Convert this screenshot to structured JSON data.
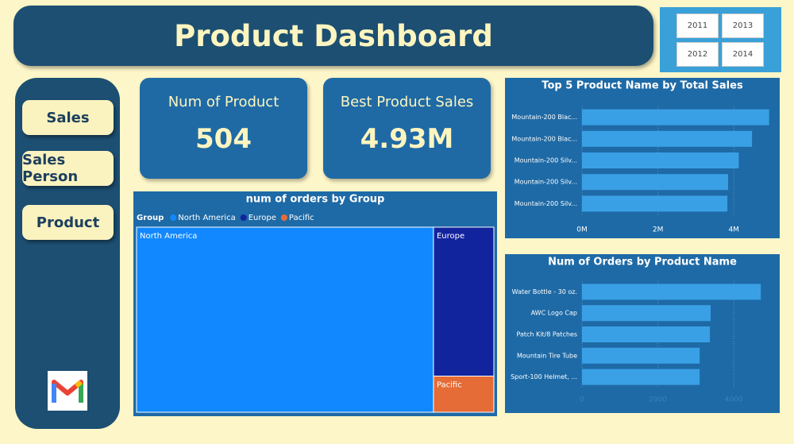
{
  "header": {
    "title": "Product Dashboard"
  },
  "year_slicer": {
    "options": [
      "2011",
      "2013",
      "2012",
      "2014"
    ]
  },
  "nav": {
    "buttons": [
      "Sales",
      "Sales Person",
      "Product"
    ]
  },
  "cards": [
    {
      "label": "Num of Product",
      "value": "504"
    },
    {
      "label": "Best Product Sales",
      "value": "4.93M"
    }
  ],
  "chart_data": [
    {
      "type": "treemap",
      "title": "num of orders by Group",
      "legend_title": "Group",
      "categories": [
        "North America",
        "Europe",
        "Pacific"
      ],
      "values": [
        83.1,
        13.6,
        3.3
      ],
      "colors": [
        "#1188ff",
        "#12239e",
        "#e66c37"
      ]
    },
    {
      "type": "bar",
      "orientation": "horizontal",
      "title": "Top 5 Product Name by Total Sales",
      "categories": [
        "Mountain-200 Blac...",
        "Mountain-200 Blac...",
        "Mountain-200 Silv...",
        "Mountain-200 Silv...",
        "Mountain-200 Silv..."
      ],
      "values": [
        4930000,
        4480000,
        4130000,
        3850000,
        3830000
      ],
      "color": "#3aa0e6",
      "xlim": [
        0,
        5000000
      ],
      "xticks": [
        {
          "value": 0,
          "label": "0M"
        },
        {
          "value": 2000000,
          "label": "2M"
        },
        {
          "value": 4000000,
          "label": "4M"
        }
      ],
      "grid": true
    },
    {
      "type": "bar",
      "orientation": "horizontal",
      "title": "Num of Orders by Product Name",
      "categories": [
        "Water Bottle - 30 oz.",
        "AWC Logo Cap",
        "Patch Kit/8 Patches",
        "Mountain Tire Tube",
        "Sport-100 Helmet, ..."
      ],
      "values": [
        4710,
        3390,
        3370,
        3100,
        3100
      ],
      "color": "#3aa0e6",
      "xlim": [
        0,
        5000
      ],
      "xticks": [
        0,
        2000,
        4000
      ],
      "grid": true
    }
  ]
}
